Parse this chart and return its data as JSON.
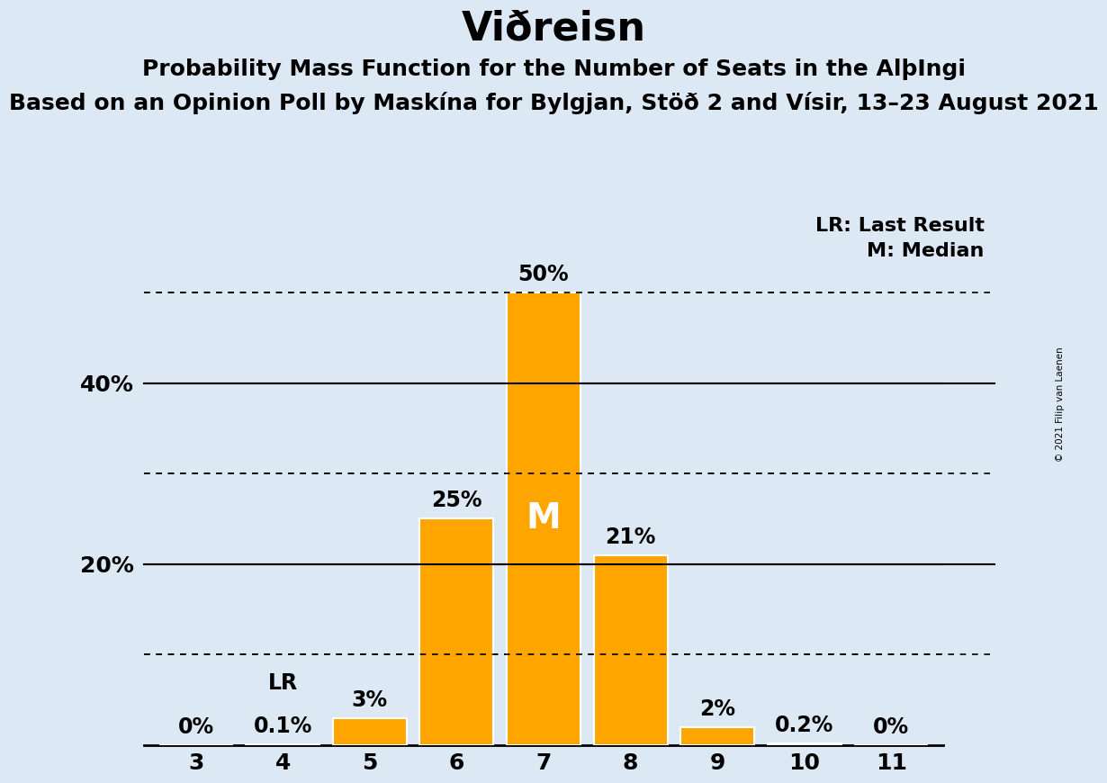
{
  "title": "Viðreisn",
  "subtitle1": "Probability Mass Function for the Number of Seats in the AlþIngi",
  "subtitle2": "Based on an Opinion Poll by Maskína for Bylgjan, Stöð 2 and Vísir, 13–23 August 2021",
  "copyright": "© 2021 Filip van Laenen",
  "seats": [
    3,
    4,
    5,
    6,
    7,
    8,
    9,
    10,
    11
  ],
  "probabilities": [
    0.0,
    0.1,
    3.0,
    25.0,
    50.0,
    21.0,
    2.0,
    0.2,
    0.0
  ],
  "bar_color": "#FFA500",
  "bar_edge_color": "#FFFFFF",
  "background_color": "#dce9f5",
  "median_seat": 7,
  "lr_seat": 4,
  "lr_label": "LR",
  "median_label": "M",
  "legend_lr": "LR: Last Result",
  "legend_m": "M: Median",
  "yticks": [
    20,
    40
  ],
  "solid_gridlines": [
    20,
    40
  ],
  "dotted_gridlines": [
    10,
    30,
    50
  ],
  "ylim": [
    0,
    57
  ],
  "title_fontsize": 32,
  "subtitle1_fontsize": 18,
  "subtitle2_fontsize": 18,
  "bar_label_fontsize": 17,
  "axis_fontsize": 18
}
